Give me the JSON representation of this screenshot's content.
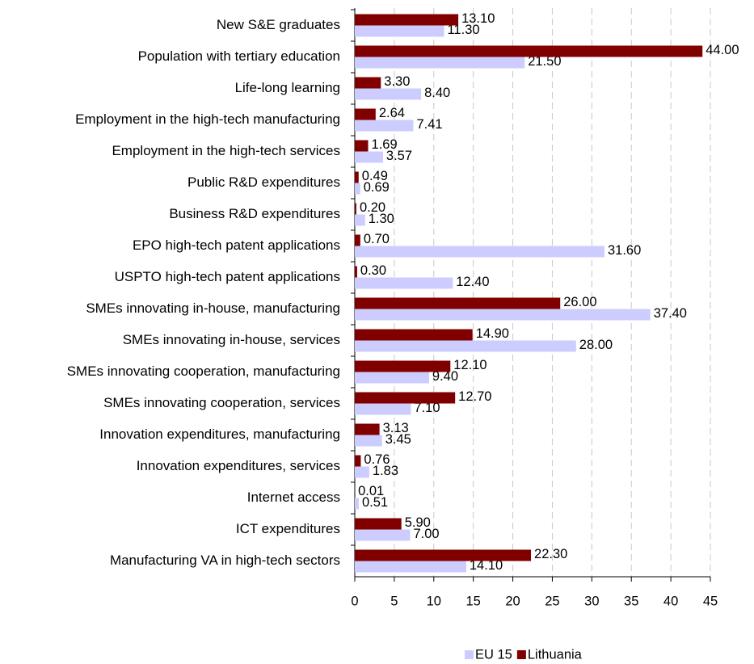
{
  "chart_data": {
    "type": "hbar",
    "categories": [
      "New S&E graduates",
      "Population with tertiary education",
      "Life-long learning",
      "Employment in the high-tech manufacturing",
      "Employment in the high-tech services",
      "Public R&D expenditures",
      "Business R&D expenditures",
      "EPO high-tech patent applications",
      "USPTO high-tech patent applications",
      "SMEs innovating in-house, manufacturing",
      "SMEs  innovating in-house, services",
      "SMEs  innovating cooperation, manufacturing",
      "SMEs  innovating cooperation, services",
      "Innovation expenditures, manufacturing",
      "Innovation expenditures, services",
      "Internet access",
      "ICT expenditures",
      "Manufacturing VA in high-tech sectors"
    ],
    "series": [
      {
        "name": "EU 15",
        "color": "#ccccff",
        "values": [
          11.3,
          21.5,
          8.4,
          7.41,
          3.57,
          0.69,
          1.3,
          31.6,
          12.4,
          37.4,
          28,
          9.4,
          7.1,
          3.45,
          1.83,
          0.51,
          7,
          14.1
        ],
        "value_labels": [
          "11.30",
          "21.50",
          "8.40",
          "7.41",
          "3.57",
          "0.69",
          "1.30",
          "31.60",
          "12.40",
          "37.40",
          "28.00",
          "9.40",
          "7.10",
          "3.45",
          "1.83",
          "0.51",
          "7.00",
          "14.10"
        ]
      },
      {
        "name": "Lithuania",
        "color": "#800000",
        "values": [
          13.1,
          44,
          3.3,
          2.64,
          1.69,
          0.49,
          0.2,
          0.7,
          0.3,
          26,
          14.9,
          12.1,
          12.7,
          3.13,
          0.76,
          0.01,
          5.9,
          22.3
        ],
        "value_labels": [
          "13.10",
          "44.00",
          "3.30",
          "2.64",
          "1.69",
          "0.49",
          "0.20",
          "0.70",
          "0.30",
          "26.00",
          "14.90",
          "12.10",
          "12.70",
          "3.13",
          "0.76",
          "0.01",
          "5.90",
          "22.30"
        ]
      }
    ],
    "xlim": [
      0,
      45
    ],
    "xticks": [
      0,
      5,
      10,
      15,
      20,
      25,
      30,
      35,
      40,
      45
    ],
    "grid": true,
    "legend": "bottom"
  }
}
